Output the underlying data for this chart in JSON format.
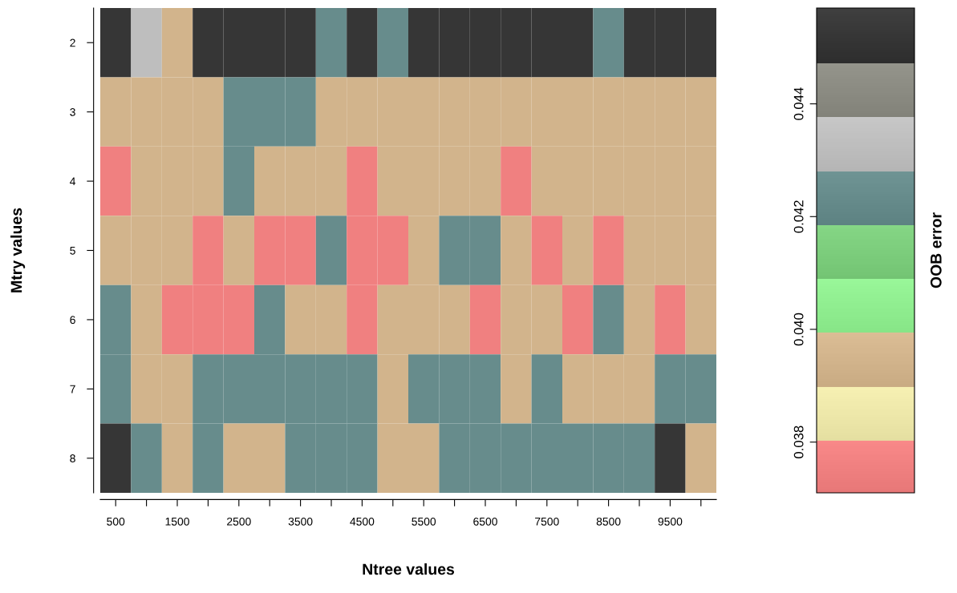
{
  "chart_data": {
    "type": "heatmap",
    "xlabel": "Ntree values",
    "ylabel": "Mtry values",
    "clabel": "OOB error",
    "categories": [
      "500",
      null,
      "1500",
      null,
      "2500",
      null,
      "3500",
      null,
      "4500",
      null,
      "5500",
      null,
      "6500",
      null,
      "7500",
      null,
      "8500",
      null,
      "9500",
      null
    ],
    "y_categories": [
      "2",
      "3",
      "4",
      "5",
      "6",
      "7",
      "8"
    ],
    "cells": [
      [
        0.0452,
        0.0433,
        0.0395,
        0.0452,
        0.0452,
        0.0452,
        0.0452,
        0.0424,
        0.0452,
        0.0424,
        0.0452,
        0.0452,
        0.0452,
        0.0452,
        0.0452,
        0.0452,
        0.0424,
        0.0452,
        0.0452,
        0.0452
      ],
      [
        0.0395,
        0.0395,
        0.0395,
        0.0395,
        0.0424,
        0.0424,
        0.0424,
        0.0395,
        0.0395,
        0.0395,
        0.0395,
        0.0395,
        0.0395,
        0.0395,
        0.0395,
        0.0395,
        0.0395,
        0.0395,
        0.0395,
        0.0395
      ],
      [
        0.0376,
        0.0395,
        0.0395,
        0.0395,
        0.0424,
        0.0395,
        0.0395,
        0.0395,
        0.0376,
        0.0395,
        0.0395,
        0.0395,
        0.0395,
        0.0376,
        0.0395,
        0.0395,
        0.0395,
        0.0395,
        0.0395,
        0.0395
      ],
      [
        0.0395,
        0.0395,
        0.0395,
        0.0376,
        0.0395,
        0.0376,
        0.0376,
        0.0424,
        0.0376,
        0.0376,
        0.0395,
        0.0424,
        0.0424,
        0.0395,
        0.0376,
        0.0395,
        0.0376,
        0.0395,
        0.0395,
        0.0395
      ],
      [
        0.0424,
        0.0395,
        0.0376,
        0.0376,
        0.0376,
        0.0424,
        0.0395,
        0.0395,
        0.0376,
        0.0395,
        0.0395,
        0.0395,
        0.0376,
        0.0395,
        0.0395,
        0.0376,
        0.0424,
        0.0395,
        0.0376,
        0.0395
      ],
      [
        0.0424,
        0.0395,
        0.0395,
        0.0424,
        0.0424,
        0.0424,
        0.0424,
        0.0424,
        0.0424,
        0.0395,
        0.0424,
        0.0424,
        0.0424,
        0.0395,
        0.0424,
        0.0395,
        0.0395,
        0.0395,
        0.0424,
        0.0424
      ],
      [
        0.0452,
        0.0424,
        0.0395,
        0.0424,
        0.0395,
        0.0395,
        0.0424,
        0.0424,
        0.0424,
        0.0395,
        0.0395,
        0.0424,
        0.0424,
        0.0424,
        0.0424,
        0.0424,
        0.0424,
        0.0424,
        0.0452,
        0.0395
      ]
    ],
    "colors": [
      "#f08080",
      "#eee8aa",
      "#d2b48c",
      "#90ee90",
      "#7ccd7c",
      "#668b8b",
      "#bebebe",
      "#8b8b82",
      "#363636"
    ],
    "clim": [
      0.0371,
      0.0457
    ],
    "cticks": [
      0.038,
      {
        "value": 0.04,
        "label": "0.040"
      },
      0.042,
      0.044
    ]
  }
}
